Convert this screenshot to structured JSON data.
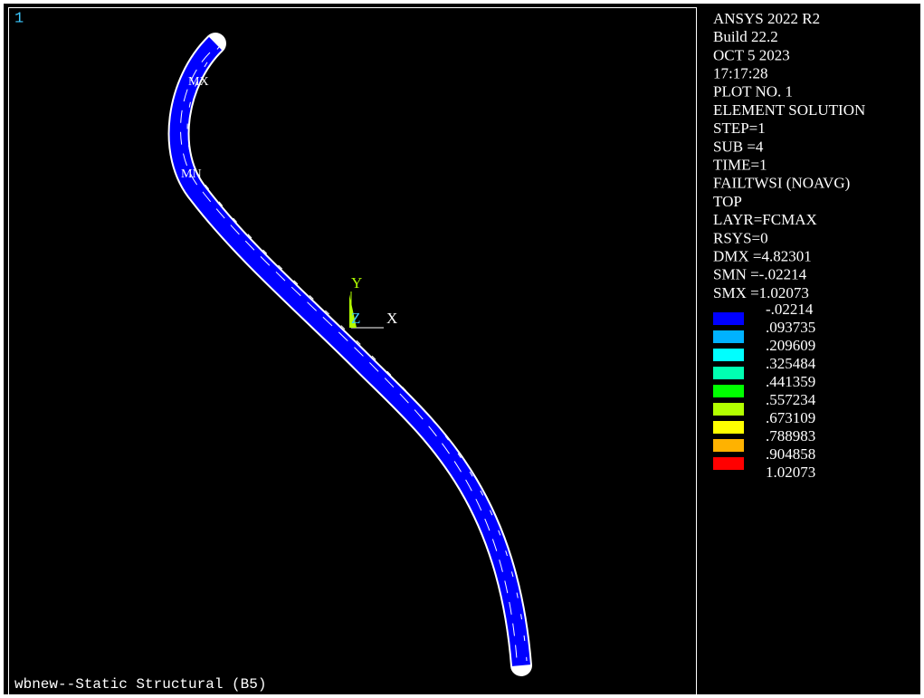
{
  "window_number": "1",
  "footer": "wbnew--Static Structural (B5)",
  "annotations": {
    "max": "MX",
    "min": "MN"
  },
  "triad": {
    "y": "Y",
    "z": "Z",
    "x": "X"
  },
  "info": [
    "ANSYS 2022 R2",
    "Build 22.2",
    "OCT  5 2023",
    "17:17:28",
    "PLOT NO.    1",
    "ELEMENT SOLUTION",
    "STEP=1",
    "SUB =4",
    "TIME=1",
    "FAILTWSI (NOAVG)",
    "TOP",
    "LAYR=FCMAX",
    "RSYS=0",
    "DMX =4.82301",
    "SMN =-.02214",
    "SMX =1.02073"
  ],
  "legend": {
    "labels": [
      "-.02214",
      ".093735",
      ".209609",
      ".325484",
      ".441359",
      ".557234",
      ".673109",
      ".788983",
      ".904858",
      "1.02073"
    ],
    "colors": [
      "#0000ff",
      "#00b2ff",
      "#00ffff",
      "#00ffb2",
      "#00ff00",
      "#b2ff00",
      "#ffff00",
      "#ffb200",
      "#ff0000"
    ]
  }
}
